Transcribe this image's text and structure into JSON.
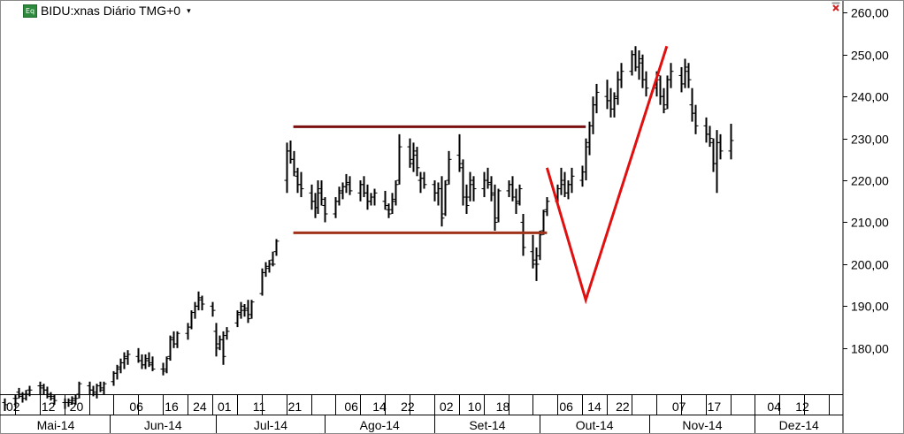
{
  "window": {
    "title": "BIDU:xnas Diário TMG+0",
    "icon_label": "Eq"
  },
  "colors": {
    "bars": "#000000",
    "resistance_line": "#7a1010",
    "support_line": "#a0321a",
    "v_pattern": "#e01010",
    "grid": "#b0b0b0"
  },
  "chart_data": {
    "type": "ohlc",
    "title": "BIDU:xnas Diário TMG+0",
    "yaxis": {
      "side": "right",
      "min": 169,
      "max": 262.8,
      "ticks": [
        "260,00",
        "250,00",
        "240,00",
        "230,00",
        "220,00",
        "210,00",
        "200,00",
        "190,00",
        "180,00"
      ],
      "tick_values": [
        260,
        250,
        240,
        230,
        220,
        210,
        200,
        190,
        180
      ]
    },
    "xaxis": {
      "day_labels": [
        "02",
        "12",
        "20",
        "06",
        "16",
        "24",
        "01",
        "11",
        "21",
        "06",
        "14",
        "22",
        "02",
        "10",
        "18",
        "06",
        "14",
        "22",
        "07",
        "17",
        "04",
        "12"
      ],
      "month_labels": [
        "Mai-14",
        "Jun-14",
        "Jul-14",
        "Ago-14",
        "Set-14",
        "Out-14",
        "Nov-14",
        "Dez-14"
      ]
    },
    "bars_start": "2014-05-02",
    "bars": [
      [
        167.0,
        168.0,
        165.0,
        166.5
      ],
      [
        168.0,
        169.0,
        166.0,
        168.0
      ],
      [
        169.5,
        170.5,
        168.0,
        169.0
      ],
      [
        168.5,
        169.5,
        167.0,
        168.0
      ],
      [
        169.0,
        170.0,
        167.5,
        169.0
      ],
      [
        170.0,
        171.0,
        168.5,
        170.0
      ],
      [
        171.0,
        172.0,
        169.0,
        171.0
      ],
      [
        170.5,
        171.5,
        169.0,
        170.0
      ],
      [
        170.0,
        170.8,
        168.0,
        169.0
      ],
      [
        168.5,
        169.5,
        167.5,
        168.5
      ],
      [
        168.0,
        169.0,
        166.5,
        167.5
      ],
      [
        167.0,
        168.0,
        165.5,
        167.0
      ],
      [
        167.0,
        168.0,
        166.0,
        167.0
      ],
      [
        167.5,
        168.5,
        166.5,
        167.5
      ],
      [
        168.0,
        169.0,
        166.5,
        168.0
      ],
      [
        169.0,
        172.0,
        168.0,
        171.5
      ],
      [
        171.0,
        172.0,
        169.0,
        170.0
      ],
      [
        170.0,
        171.0,
        168.5,
        169.5
      ],
      [
        169.0,
        171.5,
        168.0,
        171.0
      ],
      [
        171.0,
        172.0,
        169.5,
        170.5
      ],
      [
        170.0,
        172.0,
        169.0,
        171.5
      ],
      [
        172.0,
        174.5,
        171.0,
        174.0
      ],
      [
        174.0,
        176.0,
        172.5,
        175.0
      ],
      [
        175.5,
        177.5,
        174.0,
        176.5
      ],
      [
        176.5,
        179.0,
        175.0,
        178.0
      ],
      [
        177.5,
        179.5,
        176.0,
        178.5
      ],
      [
        178.0,
        180.0,
        176.5,
        177.0
      ],
      [
        177.0,
        178.5,
        175.0,
        176.0
      ],
      [
        176.0,
        178.5,
        175.0,
        177.5
      ],
      [
        177.0,
        179.0,
        175.5,
        176.0
      ],
      [
        176.5,
        178.0,
        174.5,
        175.0
      ],
      [
        175.0,
        176.5,
        173.5,
        174.5
      ],
      [
        175.0,
        178.0,
        174.0,
        177.5
      ],
      [
        178.0,
        183.0,
        177.0,
        182.5
      ],
      [
        182.0,
        184.0,
        180.0,
        181.0
      ],
      [
        181.0,
        184.0,
        180.0,
        183.5
      ],
      [
        183.5,
        186.0,
        182.0,
        185.0
      ],
      [
        185.0,
        189.0,
        184.5,
        188.5
      ],
      [
        188.5,
        191.0,
        187.0,
        190.0
      ],
      [
        190.0,
        193.5,
        189.0,
        192.0
      ],
      [
        191.5,
        192.5,
        189.0,
        190.5
      ],
      [
        190.0,
        191.0,
        187.5,
        189.0
      ],
      [
        184.0,
        186.0,
        178.0,
        180.0
      ],
      [
        181.0,
        183.0,
        179.5,
        182.0
      ],
      [
        182.0,
        184.0,
        176.0,
        178.0
      ],
      [
        183.0,
        185.0,
        182.0,
        184.0
      ],
      [
        186.0,
        189.0,
        185.0,
        188.5
      ],
      [
        188.0,
        191.0,
        187.0,
        190.0
      ],
      [
        189.0,
        190.5,
        187.5,
        189.5
      ],
      [
        189.0,
        191.5,
        186.0,
        187.0
      ],
      [
        188.0,
        191.5,
        187.0,
        191.0
      ],
      [
        193.0,
        199.0,
        192.5,
        198.0
      ],
      [
        198.0,
        200.5,
        197.0,
        199.5
      ],
      [
        199.0,
        201.0,
        198.0,
        200.0
      ],
      [
        201.0,
        203.0,
        199.5,
        200.0
      ],
      [
        203.0,
        206.0,
        202.0,
        205.5
      ],
      [
        220.0,
        229.0,
        217.0,
        227.0
      ],
      [
        227.0,
        229.5,
        224.0,
        225.0
      ],
      [
        225.0,
        227.0,
        221.0,
        222.0
      ],
      [
        221.0,
        223.0,
        217.0,
        219.0
      ],
      [
        219.0,
        222.0,
        216.0,
        218.0
      ],
      [
        217.0,
        219.0,
        213.0,
        215.0
      ],
      [
        215.0,
        217.0,
        211.0,
        213.5
      ],
      [
        213.5,
        220.0,
        212.0,
        218.0
      ],
      [
        217.0,
        220.0,
        214.0,
        215.5
      ],
      [
        214.0,
        216.0,
        210.0,
        212.0
      ],
      [
        212.0,
        216.0,
        211.0,
        215.0
      ],
      [
        215.0,
        218.5,
        214.0,
        217.5
      ],
      [
        217.0,
        219.5,
        215.5,
        218.5
      ],
      [
        218.5,
        221.5,
        217.0,
        219.5
      ],
      [
        219.0,
        221.0,
        216.5,
        217.5
      ],
      [
        217.0,
        220.0,
        215.0,
        219.0
      ],
      [
        219.0,
        221.0,
        216.0,
        217.0
      ],
      [
        217.0,
        219.0,
        213.0,
        215.0
      ],
      [
        215.0,
        217.0,
        214.0,
        216.0
      ],
      [
        216.0,
        218.0,
        214.0,
        217.0
      ],
      [
        215.0,
        217.5,
        213.0,
        214.0
      ],
      [
        213.0,
        214.5,
        211.0,
        212.0
      ],
      [
        213.0,
        217.0,
        212.0,
        215.5
      ],
      [
        215.0,
        220.0,
        214.0,
        219.0
      ],
      [
        220.0,
        231.0,
        219.0,
        228.0
      ],
      [
        228.0,
        230.0,
        223.0,
        224.0
      ],
      [
        225.0,
        229.0,
        222.0,
        227.0
      ],
      [
        226.0,
        228.0,
        221.0,
        223.0
      ],
      [
        220.0,
        222.0,
        217.0,
        220.5
      ],
      [
        220.5,
        222.0,
        218.0,
        219.0
      ],
      [
        219.0,
        220.0,
        215.0,
        217.0
      ],
      [
        217.0,
        219.5,
        214.0,
        218.0
      ],
      [
        218.0,
        221.0,
        209.0,
        211.0
      ],
      [
        212.0,
        220.0,
        211.5,
        219.0
      ],
      [
        220.0,
        227.0,
        219.0,
        225.0
      ],
      [
        226.0,
        231.0,
        222.0,
        224.0
      ],
      [
        223.0,
        225.0,
        214.0,
        216.0
      ],
      [
        216.0,
        219.0,
        212.0,
        214.0
      ],
      [
        216.0,
        222.0,
        215.0,
        220.0
      ],
      [
        219.0,
        221.0,
        215.0,
        218.0
      ],
      [
        218.0,
        222.0,
        216.0,
        220.0
      ],
      [
        220.0,
        223.0,
        218.0,
        219.5
      ],
      [
        219.0,
        221.0,
        215.0,
        216.5
      ],
      [
        217.0,
        219.0,
        208.0,
        210.0
      ],
      [
        211.0,
        218.0,
        210.0,
        217.5
      ],
      [
        217.5,
        220.0,
        216.0,
        219.0
      ],
      [
        219.0,
        221.0,
        215.0,
        216.0
      ],
      [
        216.0,
        218.0,
        212.0,
        214.5
      ],
      [
        215.0,
        219.0,
        214.0,
        218.0
      ],
      [
        210.0,
        212.0,
        202.0,
        204.0
      ],
      [
        203.0,
        207.0,
        199.0,
        200.0
      ],
      [
        201.0,
        204.0,
        196.0,
        200.0
      ],
      [
        202.0,
        208.0,
        201.0,
        207.0
      ],
      [
        208.0,
        213.0,
        207.0,
        212.5
      ],
      [
        213.0,
        216.0,
        211.5,
        215.0
      ],
      [
        215.0,
        219.0,
        214.0,
        218.0
      ],
      [
        218.0,
        223.0,
        216.5,
        220.0
      ],
      [
        219.0,
        222.0,
        216.0,
        217.0
      ],
      [
        217.0,
        220.0,
        215.5,
        219.0
      ],
      [
        219.0,
        223.0,
        217.0,
        221.0
      ],
      [
        220.0,
        223.5,
        218.5,
        222.0
      ],
      [
        222.0,
        230.0,
        220.0,
        229.0
      ],
      [
        228.0,
        234.0,
        226.0,
        233.0
      ],
      [
        233.0,
        240.0,
        231.0,
        238.0
      ],
      [
        238.0,
        243.0,
        236.0,
        241.0
      ],
      [
        240.0,
        244.0,
        237.0,
        239.0
      ],
      [
        239.0,
        242.0,
        235.0,
        237.0
      ],
      [
        237.0,
        241.0,
        235.0,
        239.5
      ],
      [
        240.0,
        246.0,
        238.0,
        244.0
      ],
      [
        244.0,
        248.0,
        242.0,
        246.0
      ],
      [
        246.0,
        251.0,
        245.0,
        250.0
      ],
      [
        250.0,
        252.0,
        246.0,
        247.0
      ],
      [
        247.0,
        251.0,
        244.0,
        249.0
      ],
      [
        248.0,
        250.0,
        242.0,
        244.0
      ],
      [
        244.0,
        246.0,
        240.0,
        242.0
      ],
      [
        242.0,
        246.0,
        240.0,
        245.0
      ],
      [
        244.0,
        245.0,
        238.0,
        240.0
      ],
      [
        240.0,
        242.0,
        236.0,
        237.0
      ],
      [
        238.0,
        245.0,
        237.0,
        244.0
      ],
      [
        244.0,
        248.0,
        242.0,
        246.0
      ],
      [
        245.0,
        247.0,
        241.0,
        243.0
      ],
      [
        243.0,
        249.0,
        242.0,
        247.0
      ],
      [
        246.0,
        248.0,
        242.0,
        244.0
      ],
      [
        238.0,
        242.0,
        234.0,
        236.0
      ],
      [
        236.0,
        238.0,
        231.0,
        233.0
      ],
      [
        233.0,
        235.0,
        229.0,
        231.0
      ],
      [
        231.0,
        233.0,
        228.0,
        230.0
      ],
      [
        229.0,
        230.0,
        222.0,
        224.0
      ],
      [
        224.0,
        232.0,
        217.0,
        229.0
      ],
      [
        229.0,
        231.0,
        225.0,
        227.0
      ],
      [
        227.0,
        233.5,
        225.0,
        229.5
      ]
    ],
    "annotations": {
      "resistance_line": {
        "from": [
          "2014-07-23",
          232.8
        ],
        "to": [
          "2014-10-14",
          232.8
        ]
      },
      "support_line": {
        "from": [
          "2014-07-23",
          207.5
        ],
        "to": [
          "2014-10-03",
          207.5
        ]
      },
      "v_pattern": [
        [
          "2014-10-03",
          223.0
        ],
        [
          "2014-10-14",
          191.5
        ],
        [
          "2014-11-06",
          252.0
        ]
      ]
    }
  }
}
